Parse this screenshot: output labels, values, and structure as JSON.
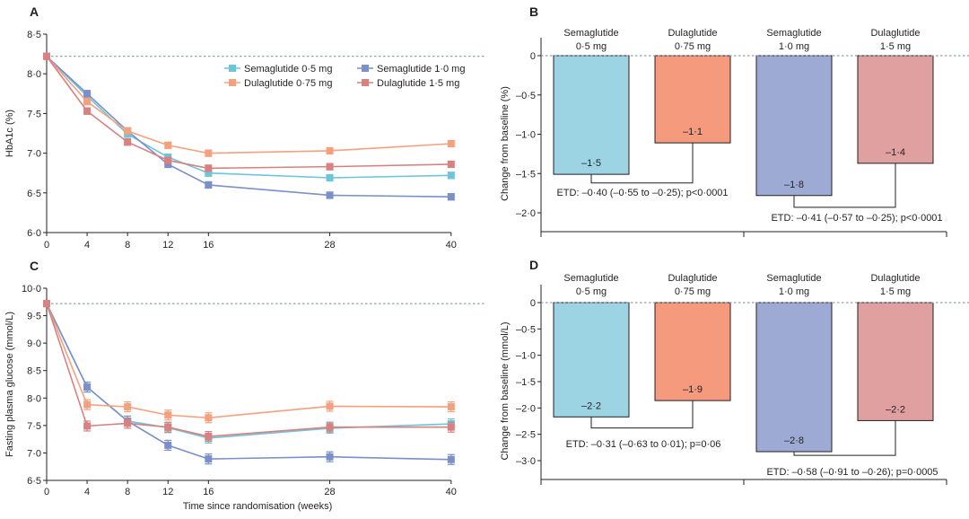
{
  "chart_data": [
    {
      "panel": "A",
      "type": "line",
      "x": [
        0,
        4,
        8,
        12,
        16,
        28,
        40
      ],
      "xlabel": "",
      "ylabel": "HbA1c (%)",
      "ylim": [
        6.0,
        8.5
      ],
      "yticks": [
        "6·0",
        "6·5",
        "7·0",
        "7·5",
        "8·0",
        "8·5"
      ],
      "xticks": [
        "0",
        "4",
        "8",
        "12",
        "16",
        "28",
        "40"
      ],
      "baseline": 8.22,
      "error": 0.04,
      "legend": "top-right",
      "series": [
        {
          "name": "Semaglutide 0·5 mg",
          "color": "#6cc6d9",
          "values": [
            8.22,
            7.72,
            7.24,
            6.95,
            6.75,
            6.69,
            6.72
          ]
        },
        {
          "name": "Semaglutide 1·0 mg",
          "color": "#7b8fc8",
          "values": [
            8.22,
            7.75,
            7.28,
            6.86,
            6.6,
            6.47,
            6.45
          ]
        },
        {
          "name": "Dulaglutide 0·75 mg",
          "color": "#f5a07f",
          "values": [
            8.22,
            7.65,
            7.28,
            7.1,
            7.0,
            7.03,
            7.12
          ]
        },
        {
          "name": "Dulaglutide 1·5 mg",
          "color": "#d98080",
          "values": [
            8.22,
            7.53,
            7.14,
            6.91,
            6.81,
            6.83,
            6.86
          ]
        }
      ]
    },
    {
      "panel": "B",
      "type": "bar",
      "ylabel": "Change from baseline (%)",
      "ylim": [
        -2.0,
        0
      ],
      "yticks": [
        "–2·0",
        "–1·5",
        "–1·0",
        "–0·5",
        "0"
      ],
      "categories": [
        [
          "Semaglutide",
          "0·5 mg"
        ],
        [
          "Dulaglutide",
          "0·75 mg"
        ],
        [
          "Semaglutide",
          "1·0 mg"
        ],
        [
          "Dulaglutide",
          "1·5 mg"
        ]
      ],
      "values": [
        -1.51,
        -1.11,
        -1.78,
        -1.37
      ],
      "value_labels": [
        "–1·5",
        "–1·1",
        "–1·8",
        "–1·4"
      ],
      "colors": [
        "#9dd4e3",
        "#f59a7c",
        "#9dabd4",
        "#e0a0a0"
      ],
      "annotations": [
        "ETD: –0·40 (–0·55 to –0·25); p<0·0001",
        "ETD: –0·41 (–0·57 to –0·25); p<0·0001"
      ]
    },
    {
      "panel": "C",
      "type": "line",
      "x": [
        0,
        4,
        8,
        12,
        16,
        28,
        40
      ],
      "xlabel": "Time since randomisation (weeks)",
      "ylabel": "Fasting plasma glucose (mmol/L)",
      "ylim": [
        6.5,
        10.0
      ],
      "yticks": [
        "6·5",
        "7·0",
        "7·5",
        "8·0",
        "8·5",
        "9·0",
        "9·5",
        "10·0"
      ],
      "xticks": [
        "0",
        "4",
        "8",
        "12",
        "16",
        "28",
        "40"
      ],
      "baseline": 9.72,
      "error": 0.09,
      "series": [
        {
          "name": "Semaglutide 0·5 mg",
          "color": "#6cc6d9",
          "values": [
            9.72,
            8.2,
            7.58,
            7.46,
            7.27,
            7.45,
            7.53
          ]
        },
        {
          "name": "Semaglutide 1·0 mg",
          "color": "#7b8fc8",
          "values": [
            9.72,
            8.2,
            7.58,
            7.14,
            6.89,
            6.93,
            6.88
          ]
        },
        {
          "name": "Dulaglutide 0·75 mg",
          "color": "#f5a07f",
          "values": [
            9.72,
            7.88,
            7.84,
            7.69,
            7.64,
            7.85,
            7.84
          ]
        },
        {
          "name": "Dulaglutide 1·5 mg",
          "color": "#d98080",
          "values": [
            9.72,
            7.49,
            7.54,
            7.47,
            7.3,
            7.47,
            7.47
          ]
        }
      ]
    },
    {
      "panel": "D",
      "type": "bar",
      "ylabel": "Change from baseline (mmol/L)",
      "ylim": [
        -3.0,
        0
      ],
      "yticks": [
        "–3·0",
        "–2·5",
        "–2·0",
        "–1·5",
        "–1·0",
        "–0·5",
        "0"
      ],
      "categories": [
        [
          "Semaglutide",
          "0·5 mg"
        ],
        [
          "Dulaglutide",
          "0·75 mg"
        ],
        [
          "Semaglutide",
          "1·0 mg"
        ],
        [
          "Dulaglutide",
          "1·5 mg"
        ]
      ],
      "values": [
        -2.17,
        -1.86,
        -2.83,
        -2.24
      ],
      "value_labels": [
        "–2·2",
        "–1·9",
        "–2·8",
        "–2·2"
      ],
      "colors": [
        "#9dd4e3",
        "#f59a7c",
        "#9dabd4",
        "#e0a0a0"
      ],
      "annotations": [
        "ETD: –0·31 (–0·63 to 0·01); p=0·06",
        "ETD: –0·58 (–0·91 to –0·26); p=0·0005"
      ]
    }
  ]
}
